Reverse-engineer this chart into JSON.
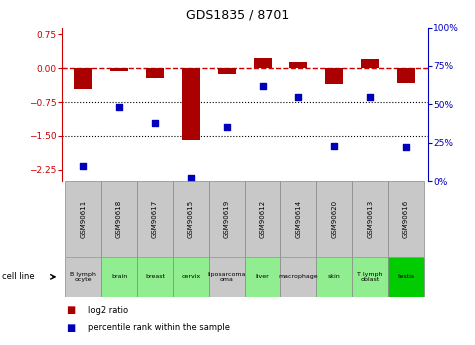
{
  "title": "GDS1835 / 8701",
  "samples": [
    "GSM90611",
    "GSM90618",
    "GSM90617",
    "GSM90615",
    "GSM90619",
    "GSM90612",
    "GSM90614",
    "GSM90620",
    "GSM90613",
    "GSM90616"
  ],
  "cell_lines": [
    "B lymph\nocyte",
    "brain",
    "breast",
    "cervix",
    "liposarcoma\n ",
    "liver",
    "macrophage",
    "skin",
    "T lymph\noblast",
    "testis"
  ],
  "cell_line_colors": [
    "#c8c8c8",
    "#90ee90",
    "#90ee90",
    "#90ee90",
    "#c8c8c8",
    "#90ee90",
    "#c8c8c8",
    "#90ee90",
    "#90ee90",
    "#00dd00"
  ],
  "log2_ratio": [
    -0.45,
    -0.06,
    -0.22,
    -1.58,
    -0.13,
    0.22,
    0.13,
    -0.35,
    0.2,
    -0.32
  ],
  "percentile_rank": [
    10,
    48,
    38,
    2,
    35,
    62,
    55,
    23,
    55,
    22
  ],
  "ylim_left": [
    -2.5,
    0.9
  ],
  "ylim_right": [
    0,
    100
  ],
  "left_yticks": [
    -2.25,
    -1.5,
    -0.75,
    0,
    0.75
  ],
  "right_yticks": [
    0,
    25,
    50,
    75,
    100
  ],
  "bar_color": "#aa0000",
  "dot_color": "#0000bb",
  "zero_line_color": "#cc0000",
  "hline_color": "#000000",
  "legend_red_label": "log2 ratio",
  "legend_blue_label": "percentile rank within the sample",
  "cell_line_label": "cell line"
}
